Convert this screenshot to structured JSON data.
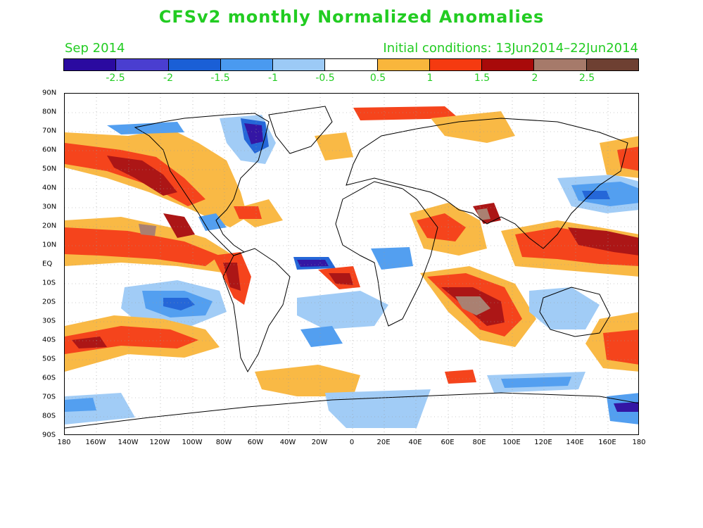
{
  "title": "CFSv2 monthly Normalized Anomalies",
  "month_label": "Sep 2014",
  "initial_conditions": "Initial conditions: 13Jun2014–22Jun2014",
  "colors": {
    "text": "#22cc22",
    "scale": [
      "#2a0aa0",
      "#4a3ed0",
      "#1a5fd6",
      "#4a9af0",
      "#9ccaf6",
      "#ffffff",
      "#f9b63c",
      "#f53a10",
      "#a80a0a",
      "#a67a6a",
      "#6e4032"
    ]
  },
  "colorbar_labels": [
    "-2.5",
    "-2",
    "-1.5",
    "-1",
    "-0.5",
    "0.5",
    "1",
    "1.5",
    "2",
    "2.5"
  ],
  "lat_labels": [
    "90N",
    "80N",
    "70N",
    "60N",
    "50N",
    "40N",
    "30N",
    "20N",
    "10N",
    "EQ",
    "10S",
    "20S",
    "30S",
    "40S",
    "50S",
    "60S",
    "70S",
    "80S",
    "90S"
  ],
  "lon_labels": [
    "180",
    "160W",
    "140W",
    "120W",
    "100W",
    "80W",
    "60W",
    "40W",
    "20W",
    "0",
    "20E",
    "40E",
    "60E",
    "80E",
    "100E",
    "120E",
    "140E",
    "160E",
    "180"
  ]
}
